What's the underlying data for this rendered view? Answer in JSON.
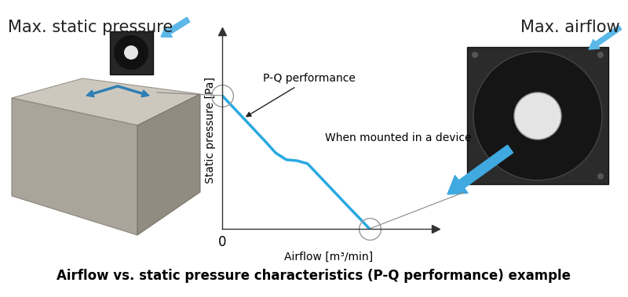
{
  "chart_data": {
    "type": "line",
    "title": "Airflow vs. static pressure characteristics (P-Q performance) example",
    "x_label": "Airflow [m³/min]",
    "y_label": "Static pressure [Pa]",
    "x": [
      0,
      1,
      2,
      2.5,
      3,
      3.5,
      4,
      4.5,
      5,
      5.5,
      6,
      6.5,
      6.9
    ],
    "values": [
      6.75,
      5.6,
      4.45,
      3.85,
      3.5,
      3.45,
      3.3,
      2.73,
      2.16,
      1.59,
      1.02,
      0.46,
      0
    ],
    "color": "#29a9e1",
    "xlim": [
      0,
      10
    ],
    "ylim": [
      0,
      10
    ],
    "xticks": [
      0
    ],
    "yticks": [],
    "tick_labels": "x",
    "annotations": {
      "curve": "P-Q performance",
      "mounted": "When mounted in a device",
      "left_picture": "Max. static pressure",
      "right_picture": "Max. airflow"
    }
  }
}
